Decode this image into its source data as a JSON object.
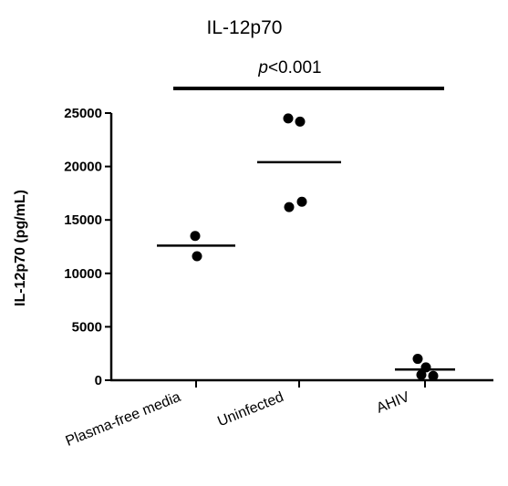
{
  "chart_data": {
    "type": "scatter",
    "title": "IL-12p70",
    "ylabel": "IL-12p70 (pg/mL)",
    "xlabel": "",
    "ylim": [
      0,
      25000
    ],
    "yticks": [
      0,
      5000,
      10000,
      15000,
      20000,
      25000
    ],
    "ytick_labels": [
      "0",
      "5000",
      "10000",
      "15000",
      "20000",
      "25000"
    ],
    "categories": [
      "Plasma-free media",
      "Uninfected",
      "AHIV"
    ],
    "groups": [
      {
        "category": "Plasma-free media",
        "points": [
          13500,
          11600
        ],
        "mean": 12600
      },
      {
        "category": "Uninfected",
        "points": [
          24500,
          24200,
          16200,
          16700
        ],
        "mean": 20400
      },
      {
        "category": "AHIV",
        "points": [
          2000,
          1200,
          500,
          400
        ],
        "mean": 1000
      }
    ],
    "significance": {
      "label_italic": "p",
      "label_rest": "<0.001",
      "from": "Plasma-free media",
      "to": "AHIV"
    },
    "marker_color": "#000000"
  }
}
